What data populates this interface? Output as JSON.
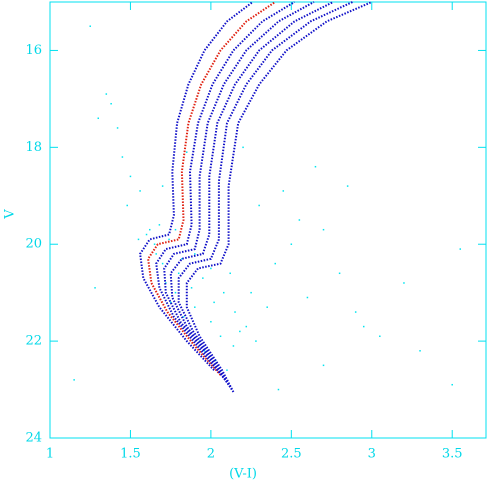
{
  "chart_data": {
    "type": "scatter",
    "xlabel": "(V-I)",
    "ylabel": "V",
    "xlim": [
      1,
      3.71
    ],
    "ylim": [
      24,
      15
    ],
    "y_inverted": true,
    "xticks": [
      1,
      1.5,
      2,
      2.5,
      3,
      3.5
    ],
    "yticks": [
      16,
      18,
      20,
      22,
      24
    ],
    "axis_color": "#00e0f0",
    "series": [
      {
        "style": "points",
        "color": "#00e5f0",
        "x": [
          1.62,
          1.65,
          1.7,
          1.72,
          1.75,
          1.78,
          1.8,
          1.83,
          1.86,
          1.9,
          1.93,
          1.96,
          2.0,
          2.03,
          2.06,
          2.1,
          2.14,
          2.18,
          1.68,
          1.74,
          1.82,
          1.88,
          1.95,
          2.02,
          2.08,
          2.15,
          2.22,
          2.28,
          1.6,
          1.66,
          1.78,
          1.9,
          2.0,
          2.12,
          2.25,
          2.35,
          1.55,
          1.5,
          1.45,
          1.42,
          1.48,
          1.38,
          1.3,
          1.25,
          1.56,
          2.4,
          2.5,
          2.6,
          2.7,
          2.8,
          2.9,
          3.05,
          3.2,
          3.3,
          2.45,
          2.3,
          2.55,
          2.65,
          2.2,
          1.35,
          1.15,
          1.28,
          2.85,
          3.5,
          3.55,
          2.95,
          2.7,
          2.42,
          1.7,
          1.85
        ],
        "y": [
          19.7,
          20.0,
          20.4,
          20.8,
          21.2,
          21.0,
          20.6,
          21.5,
          21.8,
          21.3,
          22.0,
          22.2,
          21.6,
          22.4,
          21.9,
          22.6,
          22.1,
          21.8,
          19.6,
          19.9,
          20.3,
          20.9,
          20.7,
          21.2,
          21.0,
          21.4,
          21.7,
          22.0,
          19.8,
          20.2,
          19.7,
          20.2,
          20.5,
          20.6,
          21.0,
          21.3,
          19.9,
          18.6,
          18.2,
          17.6,
          19.2,
          17.1,
          17.4,
          15.5,
          18.9,
          20.4,
          20.0,
          21.1,
          19.7,
          20.6,
          21.4,
          21.9,
          20.8,
          22.2,
          18.9,
          19.2,
          19.5,
          18.4,
          18.0,
          16.9,
          22.8,
          20.9,
          18.8,
          22.9,
          20.1,
          21.7,
          22.5,
          23.0,
          18.8,
          18.1
        ]
      },
      {
        "style": "line",
        "color": "#1010c8",
        "x": [
          2.02,
          1.85,
          1.68,
          1.58,
          1.56,
          1.62,
          1.74,
          1.77,
          1.76,
          1.79,
          1.86,
          1.96,
          2.1,
          2.26
        ],
        "y": [
          22.6,
          22.0,
          21.3,
          20.7,
          20.2,
          19.9,
          19.8,
          19.4,
          18.5,
          17.5,
          16.7,
          16.0,
          15.4,
          15.0
        ]
      },
      {
        "style": "line",
        "color": "#e02010",
        "x": [
          2.06,
          1.9,
          1.73,
          1.63,
          1.61,
          1.67,
          1.8,
          1.83,
          1.82,
          1.86,
          1.94,
          2.06,
          2.22,
          2.4
        ],
        "y": [
          22.7,
          22.1,
          21.4,
          20.8,
          20.3,
          20.0,
          19.9,
          19.5,
          18.5,
          17.5,
          16.7,
          16.0,
          15.4,
          15.0
        ]
      },
      {
        "style": "line",
        "color": "#1010c8",
        "x": [
          2.09,
          1.94,
          1.77,
          1.68,
          1.66,
          1.72,
          1.85,
          1.88,
          1.87,
          1.92,
          2.01,
          2.14,
          2.32,
          2.52
        ],
        "y": [
          22.8,
          22.2,
          21.5,
          20.9,
          20.4,
          20.1,
          20.0,
          19.6,
          18.5,
          17.5,
          16.7,
          16.0,
          15.4,
          15.0
        ]
      },
      {
        "style": "line",
        "color": "#1010c8",
        "x": [
          2.11,
          1.98,
          1.81,
          1.72,
          1.71,
          1.77,
          1.9,
          1.93,
          1.93,
          1.98,
          2.08,
          2.22,
          2.42,
          2.64
        ],
        "y": [
          22.9,
          22.3,
          21.6,
          21.0,
          20.5,
          20.2,
          20.1,
          19.7,
          18.6,
          17.5,
          16.7,
          16.0,
          15.4,
          15.0
        ]
      },
      {
        "style": "line",
        "color": "#1010c8",
        "x": [
          2.12,
          2.01,
          1.85,
          1.76,
          1.75,
          1.82,
          1.95,
          1.99,
          1.99,
          2.04,
          2.15,
          2.3,
          2.52,
          2.76
        ],
        "y": [
          22.95,
          22.4,
          21.7,
          21.1,
          20.6,
          20.3,
          20.2,
          19.8,
          18.6,
          17.5,
          16.7,
          16.0,
          15.4,
          15.0
        ]
      },
      {
        "style": "line",
        "color": "#1010c8",
        "x": [
          2.13,
          2.04,
          1.89,
          1.8,
          1.8,
          1.87,
          2.0,
          2.05,
          2.05,
          2.1,
          2.22,
          2.38,
          2.62,
          2.88
        ],
        "y": [
          23.0,
          22.5,
          21.8,
          21.2,
          20.7,
          20.4,
          20.3,
          19.9,
          18.7,
          17.5,
          16.7,
          16.0,
          15.4,
          15.0
        ]
      },
      {
        "style": "line",
        "color": "#1010c8",
        "x": [
          2.14,
          2.07,
          1.93,
          1.85,
          1.85,
          1.92,
          2.06,
          2.11,
          2.11,
          2.17,
          2.3,
          2.47,
          2.72,
          3.0
        ],
        "y": [
          23.05,
          22.6,
          21.9,
          21.3,
          20.8,
          20.5,
          20.4,
          20.0,
          18.8,
          17.5,
          16.7,
          16.0,
          15.4,
          15.0
        ]
      }
    ]
  }
}
